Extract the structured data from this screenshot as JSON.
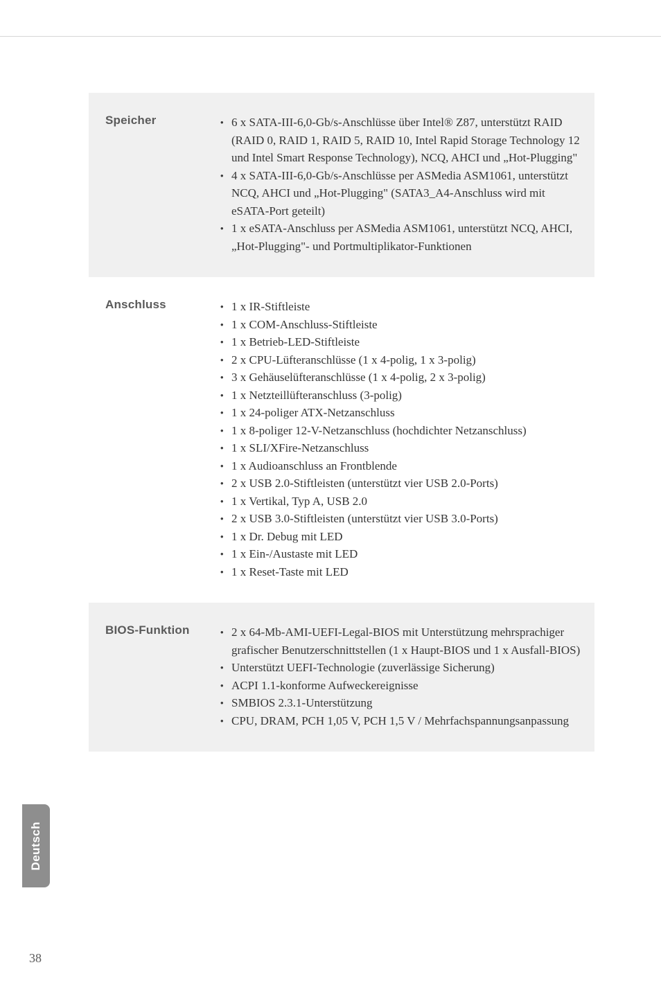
{
  "sideTab": "Deutsch",
  "pageNumber": "38",
  "sections": [
    {
      "zebra": true,
      "label": "Speicher",
      "bullets": [
        "6 x SATA-III-6,0-Gb/s-Anschlüsse über Intel® Z87, unterstützt RAID (RAID 0, RAID 1, RAID 5, RAID 10, Intel Rapid Storage Technology 12 und Intel Smart Response Technology), NCQ, AHCI und „Hot-Plugging\"",
        "4 x SATA-III-6,0-Gb/s-Anschlüsse per ASMedia ASM1061, unterstützt NCQ, AHCI und „Hot-Plugging\" (SATA3_A4-Anschluss wird mit eSATA-Port geteilt)",
        "1 x eSATA-Anschluss per ASMedia ASM1061, unterstützt NCQ, AHCI, „Hot-Plugging\"- und Portmultiplikator-Funktionen"
      ]
    },
    {
      "zebra": false,
      "label": "Anschluss",
      "bullets": [
        "1 x IR-Stiftleiste",
        "1 x COM-Anschluss-Stiftleiste",
        "1 x Betrieb-LED-Stiftleiste",
        "2 x CPU-Lüfteranschlüsse (1 x 4-polig, 1 x 3-polig)",
        "3 x Gehäuselüfteranschlüsse (1 x 4-polig, 2 x 3-polig)",
        "1 x Netzteillüfteranschluss (3-polig)",
        "1 x 24-poliger ATX-Netzanschluss",
        "1 x 8-poliger 12-V-Netzanschluss (hochdichter Netzanschluss)",
        "1 x SLI/XFire-Netzanschluss",
        "1 x Audioanschluss an Frontblende",
        "2 x USB 2.0-Stiftleisten (unterstützt vier USB 2.0-Ports)",
        "1 x Vertikal, Typ A, USB 2.0",
        "2 x USB 3.0-Stiftleisten (unterstützt vier USB 3.0-Ports)",
        "1 x Dr. Debug mit LED",
        "1 x Ein-/Austaste mit LED",
        "1 x Reset-Taste mit LED"
      ]
    },
    {
      "zebra": true,
      "label": "BIOS-Funktion",
      "bullets": [
        "2 x 64-Mb-AMI-UEFI-Legal-BIOS mit Unterstützung mehrsprachiger grafischer Benutzerschnittstellen (1 x Haupt-BIOS und 1 x Ausfall-BIOS)",
        "Unterstützt UEFI-Technologie (zuverlässige Sicherung)",
        "ACPI 1.1-konforme Aufweckereignisse",
        "SMBIOS 2.3.1-Unterstützung",
        "CPU, DRAM, PCH 1,05 V, PCH 1,5 V / Mehrfachspannungsanpassung"
      ]
    }
  ]
}
